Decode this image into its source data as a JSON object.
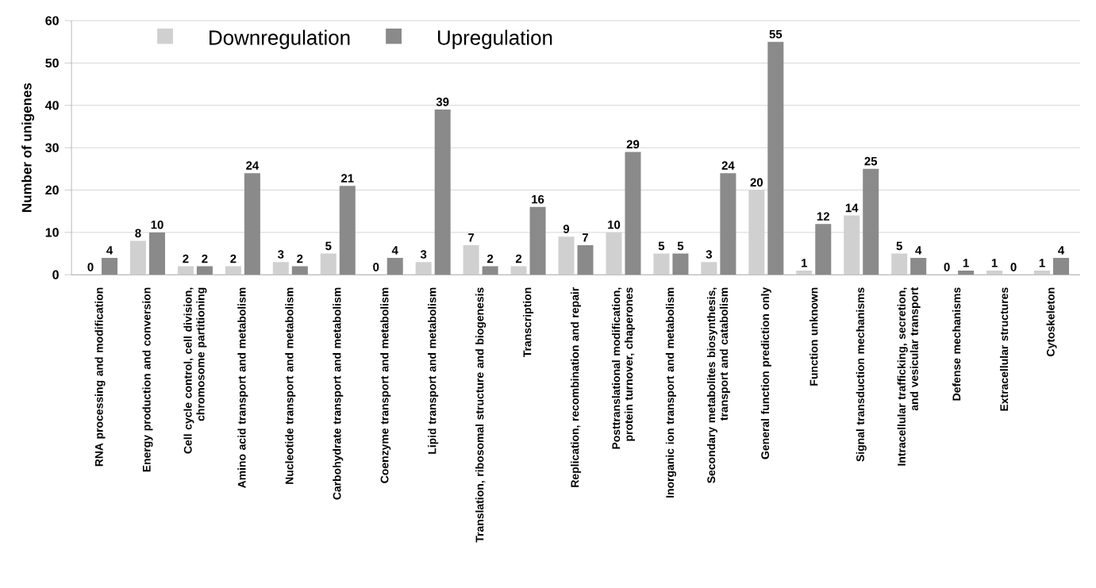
{
  "chart_data": {
    "type": "bar",
    "ylabel": "Number of unigenes",
    "categories": [
      "RNA  processing and modification",
      "Energy production and conversion",
      "Cell cycle control, cell division, chromosome partitioning",
      "Amino acid transport and metabolism",
      "Nucleotide transport and metabolism",
      "Carbohydrate transport and metabolism",
      "Coenzyme transport and metabolism",
      "Lipid transport and metabolism",
      "Translation, ribosomal structure and biogenesis",
      "Transcription",
      "Replication, recombination and repair",
      "Posttranslational modification, protein turnover, chaperones",
      "Inorganic ion transport and metabolism",
      "Secondary metabolites biosynthesis, transport and catabolism",
      "General function prediction only",
      "Function unknown",
      "Signal transduction mechanisms",
      "Intracellular trafficking, secretion, and vesicular transport",
      "Defense mechanisms",
      "Extracellular structures",
      "Cytoskeleton"
    ],
    "series": [
      {
        "name": "Downregulation",
        "color": "#d0d0d0",
        "values": [
          0,
          8,
          2,
          2,
          3,
          5,
          0,
          3,
          7,
          2,
          9,
          10,
          5,
          3,
          20,
          1,
          14,
          5,
          0,
          1,
          1
        ]
      },
      {
        "name": "Upregulation",
        "color": "#8a8a8a",
        "values": [
          4,
          10,
          2,
          24,
          2,
          21,
          4,
          39,
          2,
          16,
          7,
          29,
          5,
          24,
          55,
          12,
          25,
          4,
          1,
          0,
          4
        ]
      }
    ],
    "ylim": [
      0,
      60
    ],
    "yticks": [
      0,
      10,
      20,
      30,
      40,
      50,
      60
    ],
    "grid": "y",
    "legend": "top left",
    "data_labels": true
  }
}
